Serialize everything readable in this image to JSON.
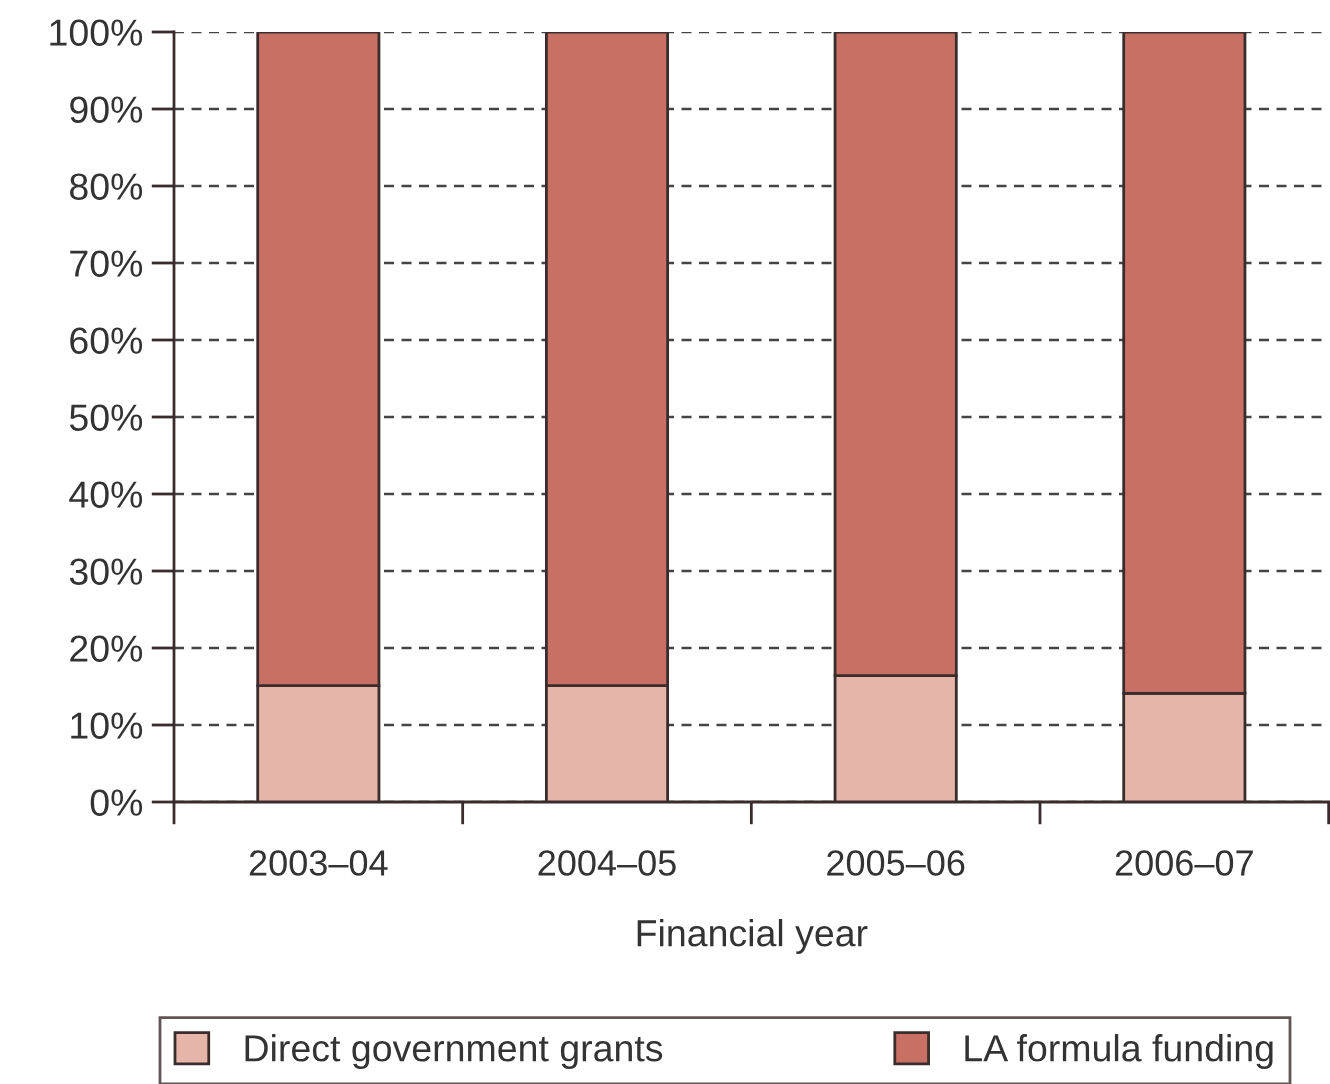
{
  "chart_data": {
    "type": "bar",
    "xlabel": "Financial year",
    "categories": [
      "2003–04",
      "2004–05",
      "2005–06",
      "2006–07"
    ],
    "series": [
      {
        "name": "Direct government grants",
        "color": "#e6b5a9",
        "values": [
          15.1,
          15.1,
          16.4,
          14.1
        ]
      },
      {
        "name": "LA formula funding",
        "color": "#c97064",
        "values": [
          84.9,
          84.9,
          83.6,
          85.9
        ]
      }
    ],
    "stacked": true,
    "ylim": [
      0,
      100
    ],
    "yticks": [
      {
        "value": 0,
        "label": "0%"
      },
      {
        "value": 10,
        "label": "10%"
      },
      {
        "value": 20,
        "label": "20%"
      },
      {
        "value": 30,
        "label": "30%"
      },
      {
        "value": 40,
        "label": "40%"
      },
      {
        "value": 50,
        "label": "50%"
      },
      {
        "value": 60,
        "label": "60%"
      },
      {
        "value": 70,
        "label": "70%"
      },
      {
        "value": 80,
        "label": "80%"
      },
      {
        "value": 90,
        "label": "90%"
      },
      {
        "value": 100,
        "label": "100%"
      }
    ],
    "grid": "y",
    "legend": "bottom"
  }
}
